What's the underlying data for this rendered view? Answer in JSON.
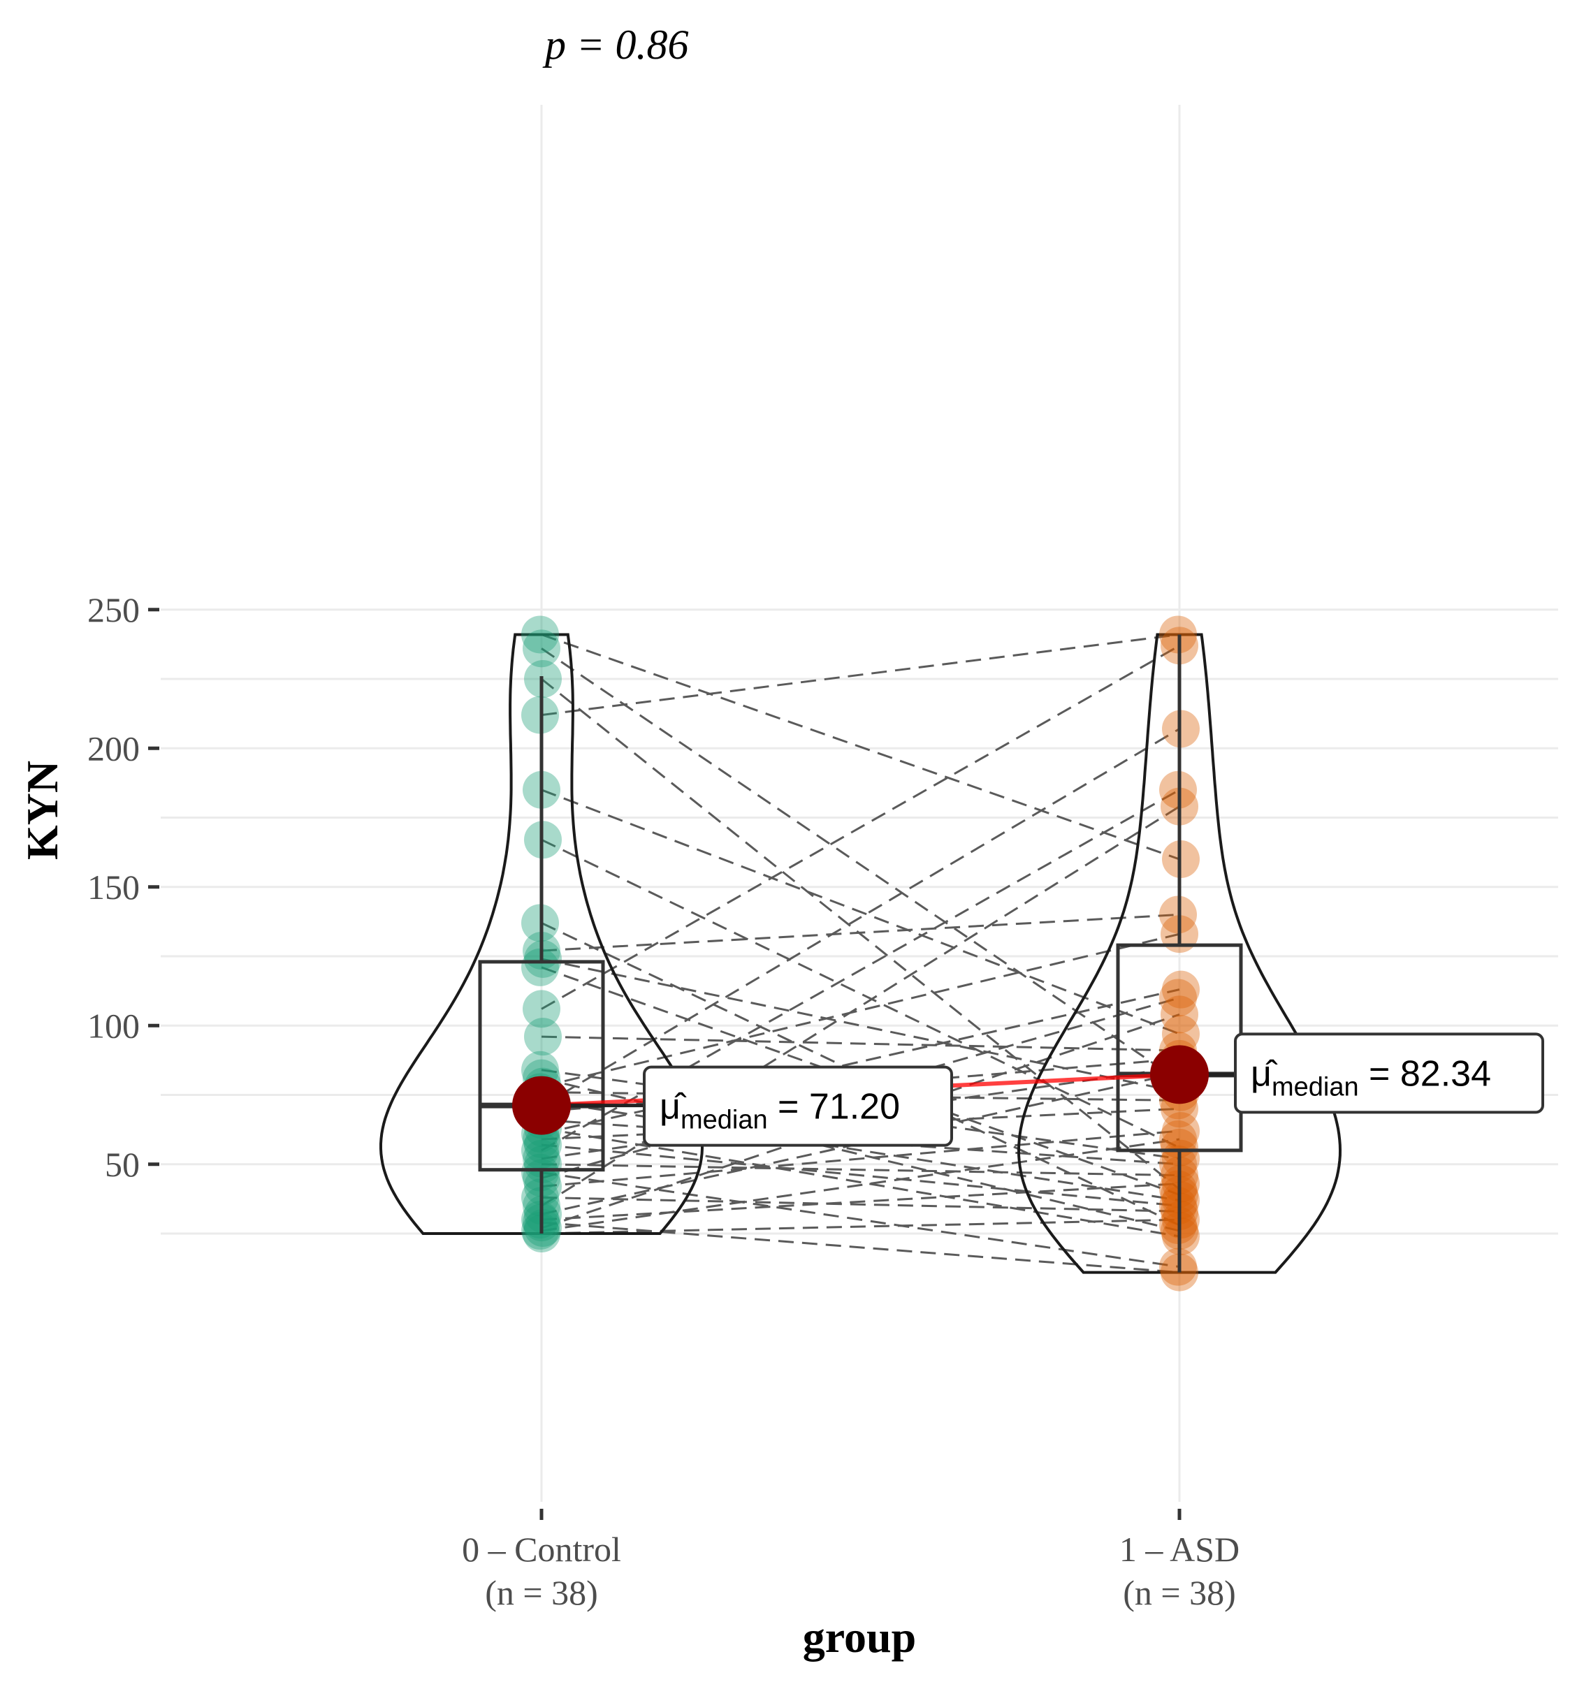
{
  "chart_data": {
    "type": "violin",
    "title": "",
    "subtitle": "p = 0.86",
    "xlabel": "group",
    "ylabel": "KYN",
    "ylim": [
      20,
      258
    ],
    "yticks": [
      50,
      100,
      150,
      200,
      250
    ],
    "grid": true,
    "legend": "none",
    "categories": [
      "0 – Control",
      "1 – ASD"
    ],
    "category_n": [
      "(n = 38)",
      "(n = 38)"
    ],
    "colors": {
      "Control": "#1b9e77",
      "ASD": "#d95f02",
      "median_point": "#8b0000",
      "median_line": "#ff0000"
    },
    "series": [
      {
        "name": "Control",
        "values": [
          241,
          236,
          225,
          212,
          185,
          167,
          137,
          127,
          124,
          121,
          106,
          96,
          84,
          81,
          78,
          76,
          73,
          71,
          69,
          66,
          63,
          61,
          59,
          57,
          55,
          52,
          50,
          47,
          45,
          42,
          38,
          35,
          32,
          30,
          29,
          27,
          26,
          25
        ],
        "box": {
          "q1": 48,
          "median": 71.2,
          "q3": 123,
          "whisker_low": 25,
          "whisker_high": 226
        },
        "median_label": "71.20"
      },
      {
        "name": "ASD",
        "values": [
          241,
          237,
          207,
          185,
          179,
          160,
          140,
          133,
          113,
          110,
          104,
          97,
          91,
          88,
          85,
          83,
          80,
          76,
          73,
          70,
          62,
          59,
          56,
          52,
          50,
          46,
          43,
          41,
          39,
          37,
          35,
          33,
          30,
          28,
          26,
          24,
          13,
          11
        ],
        "box": {
          "q1": 55,
          "median": 82.34,
          "q3": 129,
          "whisker_low": 11,
          "whisker_high": 241
        },
        "median_label": "82.34"
      }
    ],
    "median_label_prefix": "μ̂",
    "median_label_subscript": "median",
    "median_label_eq": " = "
  }
}
